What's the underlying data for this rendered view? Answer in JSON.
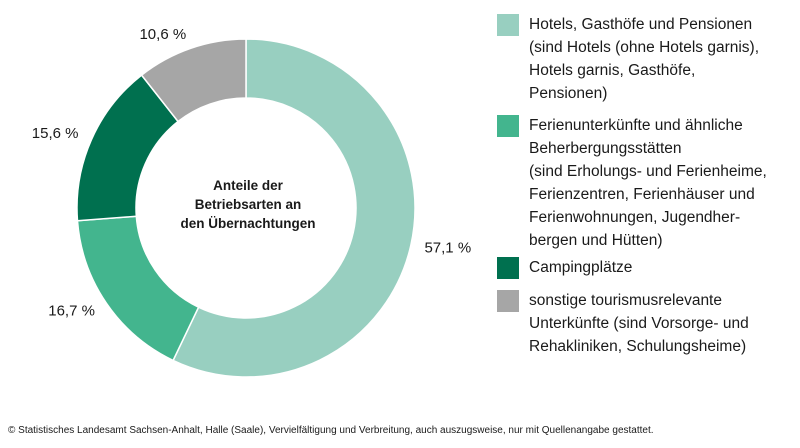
{
  "chart_data": {
    "type": "pie",
    "variant": "donut",
    "title": "Anteile der Betriebsarten an den Übernachtungen",
    "title_lines": [
      "Anteile der",
      "Betriebsarten an",
      "den Übernachtungen"
    ],
    "slices": [
      {
        "name": "Hotels, Gasthöfe und Pensionen (sind Hotels (ohne Hotels garnis), Hotels garnis, Gasthöfe, Pensionen)",
        "legend_text": "Hotels, Gasthöfe und Pensionen\n(sind Hotels (ohne Hotels garnis),\nHotels garnis, Gasthöfe,\nPensionen)",
        "value": 57.1,
        "label": "57,1 %",
        "color": "#98cfc0"
      },
      {
        "name": "Ferienunterkünfte und ähnliche Beherbergungsstätten (sind Erholungs- und Ferienheime, Ferienzentren, Ferienhäuser und Ferienwohnungen, Jugendherbergen und Hütten)",
        "legend_text": "Ferienunterkünfte und ähnliche\nBeherbergungsstätten\n(sind Erholungs- und Ferienheime,\nFerienzentren, Ferienhäuser und\nFerienwohnungen, Jugendher-\nbergen und Hütten)",
        "value": 16.7,
        "label": "16,7 %",
        "color": "#43b58e"
      },
      {
        "name": "Campingplätze",
        "legend_text": "Campingplätze",
        "value": 15.6,
        "label": "15,6 %",
        "color": "#00704f"
      },
      {
        "name": "sonstige tourismusrelevante Unterkünfte (sind Vorsorge- und Rehakliniken, Schulungsheime)",
        "legend_text": "sonstige tourismusrelevante\nUnterkünfte (sind Vorsorge- und\nRehakliniken, Schulungsheime)",
        "value": 10.6,
        "label": "10,6 %",
        "color": "#a6a6a6"
      }
    ],
    "legend_position": "right"
  },
  "footer": "© Statistisches Landesamt Sachsen-Anhalt, Halle (Saale), Vervielfältigung und Verbreitung, auch auszugsweise, nur mit Quellenangabe gestattet."
}
